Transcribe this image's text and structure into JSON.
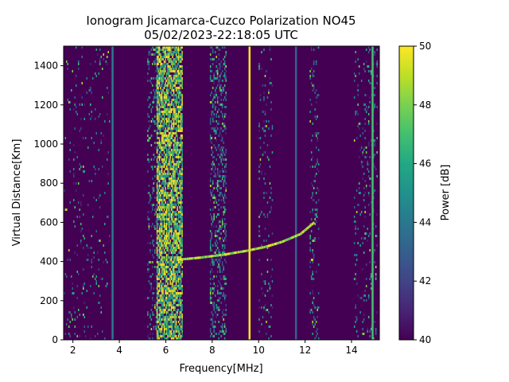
{
  "chart_data": {
    "type": "heatmap",
    "title_line1": "Ionogram Jicamarca-Cuzco Polarization NO45",
    "title_line2": "05/02/2023-22:18:05 UTC",
    "xlabel": "Frequency[MHz]",
    "ylabel": "Virtual Distance[Km]",
    "xlim": [
      1.6,
      15.2
    ],
    "ylim": [
      0,
      1500
    ],
    "xticks": [
      2,
      4,
      6,
      8,
      10,
      12,
      14
    ],
    "yticks": [
      0,
      200,
      400,
      600,
      800,
      1000,
      1200,
      1400
    ],
    "colorbar": {
      "label": "Power [dB]",
      "range": [
        40,
        50
      ],
      "ticks": [
        40,
        42,
        44,
        46,
        48,
        50
      ]
    },
    "background_power_db": 40,
    "bands": [
      {
        "name": "band-6mhz",
        "x_from": 5.6,
        "x_to": 6.7,
        "density": 0.8
      },
      {
        "name": "band-5mhz-edge",
        "x_from": 5.2,
        "x_to": 5.6,
        "density": 0.25
      },
      {
        "name": "band-8mhz",
        "x_from": 7.9,
        "x_to": 8.6,
        "density": 0.35
      },
      {
        "name": "band-10mhz",
        "x_from": 10.0,
        "x_to": 10.6,
        "density": 0.1
      },
      {
        "name": "band-12mhz",
        "x_from": 12.2,
        "x_to": 12.6,
        "density": 0.15
      },
      {
        "name": "band-14mhz",
        "x_from": 14.1,
        "x_to": 15.1,
        "density": 0.12
      },
      {
        "name": "band-low",
        "x_from": 1.6,
        "x_to": 3.6,
        "density": 0.05
      }
    ],
    "lines": [
      {
        "name": "line-9-6mhz",
        "x": 9.6,
        "power_db": 50
      },
      {
        "name": "line-3-7mhz",
        "x": 3.7,
        "power_db": 44
      },
      {
        "name": "line-11-6mhz",
        "x": 11.6,
        "power_db": 43
      },
      {
        "name": "line-14-9mhz",
        "x": 14.9,
        "power_db": 47
      }
    ],
    "trace": {
      "name": "f-layer-echo",
      "points": [
        [
          6.6,
          410
        ],
        [
          7.5,
          420
        ],
        [
          8.5,
          435
        ],
        [
          9.5,
          455
        ],
        [
          10.3,
          475
        ],
        [
          11.0,
          500
        ],
        [
          11.8,
          540
        ],
        [
          12.4,
          600
        ]
      ]
    }
  }
}
